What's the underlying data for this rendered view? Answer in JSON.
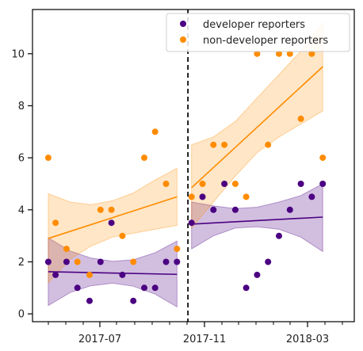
{
  "chart_data": {
    "type": "scatter",
    "title": "",
    "xlabel": "",
    "ylabel": "",
    "x_tick_labels": [
      "2017-07",
      "2017-11",
      "2018-03"
    ],
    "y_ticks": [
      0,
      2,
      4,
      6,
      8,
      10
    ],
    "ylim": [
      -0.3,
      11.7
    ],
    "xlim": [
      -1.3,
      25.2
    ],
    "grid": false,
    "legend_position": "top-right",
    "vertical_line_x": 11.5,
    "series": [
      {
        "name": "developer reporters",
        "color": "#4b0082",
        "points": [
          [
            0,
            2
          ],
          [
            0.6,
            1.5
          ],
          [
            1.5,
            2
          ],
          [
            2.4,
            1
          ],
          [
            3.4,
            0.5
          ],
          [
            4.3,
            2
          ],
          [
            5.2,
            3.5
          ],
          [
            6.1,
            1.5
          ],
          [
            7,
            0.5
          ],
          [
            7.9,
            1
          ],
          [
            8.8,
            1
          ],
          [
            9.7,
            2
          ],
          [
            10.6,
            2
          ],
          [
            11.8,
            3.5
          ],
          [
            12.7,
            4.5
          ],
          [
            13.6,
            4
          ],
          [
            14.5,
            5
          ],
          [
            15.4,
            4
          ],
          [
            16.3,
            1
          ],
          [
            17.2,
            1.5
          ],
          [
            18.1,
            2
          ],
          [
            19,
            3
          ],
          [
            19.9,
            4
          ],
          [
            20.8,
            5
          ],
          [
            21.7,
            4.5
          ],
          [
            22.6,
            5
          ]
        ],
        "trend_before": {
          "x": [
            0,
            10.6
          ],
          "y": [
            1.62,
            1.52
          ]
        },
        "band_before": {
          "x": [
            0,
            1.8,
            3.5,
            5.3,
            7,
            8.8,
            10.6
          ],
          "lower": [
            0.32,
            0.82,
            1.08,
            1.18,
            1.06,
            0.76,
            0.27
          ],
          "upper": [
            2.92,
            2.42,
            2.15,
            2.02,
            2.08,
            2.35,
            2.8
          ]
        },
        "trend_after": {
          "x": [
            11.8,
            22.6
          ],
          "y": [
            3.45,
            3.72
          ]
        },
        "band_after": {
          "x": [
            11.8,
            13.6,
            15.4,
            17.2,
            19,
            20.8,
            22.6
          ],
          "lower": [
            2.5,
            3.0,
            3.3,
            3.35,
            3.25,
            2.95,
            2.4
          ],
          "upper": [
            4.3,
            4.15,
            4.05,
            4.1,
            4.3,
            4.55,
            5.0
          ]
        }
      },
      {
        "name": "non-developer reporters",
        "color": "#ff8c00",
        "points": [
          [
            0,
            6
          ],
          [
            0.6,
            3.5
          ],
          [
            1.5,
            2.5
          ],
          [
            2.4,
            2
          ],
          [
            3.4,
            1.5
          ],
          [
            4.3,
            4
          ],
          [
            5.2,
            4
          ],
          [
            6.1,
            3
          ],
          [
            7,
            2
          ],
          [
            7.9,
            6
          ],
          [
            8.8,
            7
          ],
          [
            9.7,
            5
          ],
          [
            10.6,
            2.5
          ],
          [
            11.8,
            4.5
          ],
          [
            12.7,
            5
          ],
          [
            13.6,
            6.5
          ],
          [
            14.5,
            6.5
          ],
          [
            15.4,
            5
          ],
          [
            16.3,
            4.5
          ],
          [
            17.2,
            10
          ],
          [
            18.1,
            6.5
          ],
          [
            19,
            10
          ],
          [
            19.9,
            10
          ],
          [
            20.8,
            7.5
          ],
          [
            21.7,
            10
          ],
          [
            22.6,
            6
          ]
        ],
        "trend_before": {
          "x": [
            0,
            10.6
          ],
          "y": [
            2.9,
            4.5
          ]
        },
        "band_before": {
          "x": [
            0,
            1.8,
            3.5,
            5.3,
            7,
            8.8,
            10.6
          ],
          "lower": [
            1.2,
            2.1,
            2.6,
            2.95,
            3.1,
            3.25,
            3.4
          ],
          "upper": [
            4.62,
            4.3,
            4.2,
            4.35,
            4.65,
            5.15,
            5.6
          ]
        },
        "trend_after": {
          "x": [
            11.8,
            22.6
          ],
          "y": [
            4.85,
            9.5
          ]
        },
        "band_after": {
          "x": [
            11.8,
            13.6,
            15.4,
            17.2,
            19,
            20.8,
            22.6
          ],
          "lower": [
            3.3,
            4.3,
            5.3,
            6.2,
            6.8,
            7.3,
            7.8
          ],
          "upper": [
            6.5,
            6.8,
            7.4,
            8.3,
            9.2,
            10.1,
            11.2
          ]
        }
      }
    ]
  }
}
